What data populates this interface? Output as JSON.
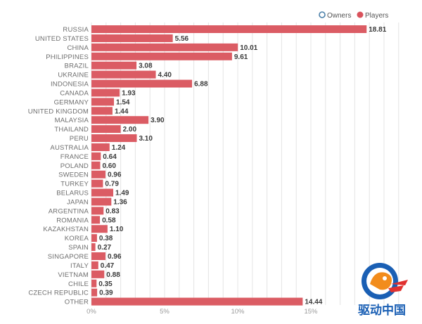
{
  "chart_data": {
    "type": "bar",
    "orientation": "horizontal",
    "categories": [
      "RUSSIA",
      "UNITED STATES",
      "CHINA",
      "PHILIPPINES",
      "BRAZIL",
      "UKRAINE",
      "INDONESIA",
      "CANADA",
      "GERMANY",
      "UNITED KINGDOM",
      "MALAYSIA",
      "THAILAND",
      "PERU",
      "AUSTRALIA",
      "FRANCE",
      "POLAND",
      "SWEDEN",
      "TURKEY",
      "BELARUS",
      "JAPAN",
      "ARGENTINA",
      "ROMANIA",
      "KAZAKHSTAN",
      "KOREA",
      "SPAIN",
      "SINGAPORE",
      "ITALY",
      "VIETNAM",
      "CHILE",
      "CZECH REPUBLIC",
      "OTHER"
    ],
    "series": [
      {
        "name": "Players",
        "values": [
          18.81,
          5.56,
          10.01,
          9.61,
          3.08,
          4.4,
          6.88,
          1.93,
          1.54,
          1.44,
          3.9,
          2.0,
          3.1,
          1.24,
          0.64,
          0.6,
          0.96,
          0.79,
          1.49,
          1.36,
          0.83,
          0.58,
          1.1,
          0.38,
          0.27,
          0.96,
          0.47,
          0.88,
          0.35,
          0.39,
          14.44
        ]
      }
    ],
    "value_labels": [
      "18.81",
      "5.56",
      "10.01",
      "9.61",
      "3.08",
      "4.40",
      "6.88",
      "1.93",
      "1.54",
      "1.44",
      "3.90",
      "2.00",
      "3.10",
      "1.24",
      "0.64",
      "0.60",
      "0.96",
      "0.79",
      "1.49",
      "1.36",
      "0.83",
      "0.58",
      "1.10",
      "0.38",
      "0.27",
      "0.96",
      "0.47",
      "0.88",
      "0.35",
      "0.39",
      "14.44"
    ],
    "x_ticks": [
      0,
      5,
      10,
      15
    ],
    "x_tick_labels": [
      "0%",
      "5%",
      "10%",
      "15%"
    ],
    "xlim": [
      0,
      21
    ],
    "grid": true,
    "legend": {
      "position": "top-right",
      "entries": [
        {
          "name": "Owners",
          "style": "ring",
          "color": "#4a7fa8"
        },
        {
          "name": "Players",
          "style": "filled",
          "color": "#d9525b"
        }
      ]
    },
    "colors": {
      "bar": "#db5c64",
      "grid": "#e4e4e4"
    }
  },
  "watermark": {
    "text": "驱动中国",
    "icon": "driver-china-logo-icon"
  }
}
